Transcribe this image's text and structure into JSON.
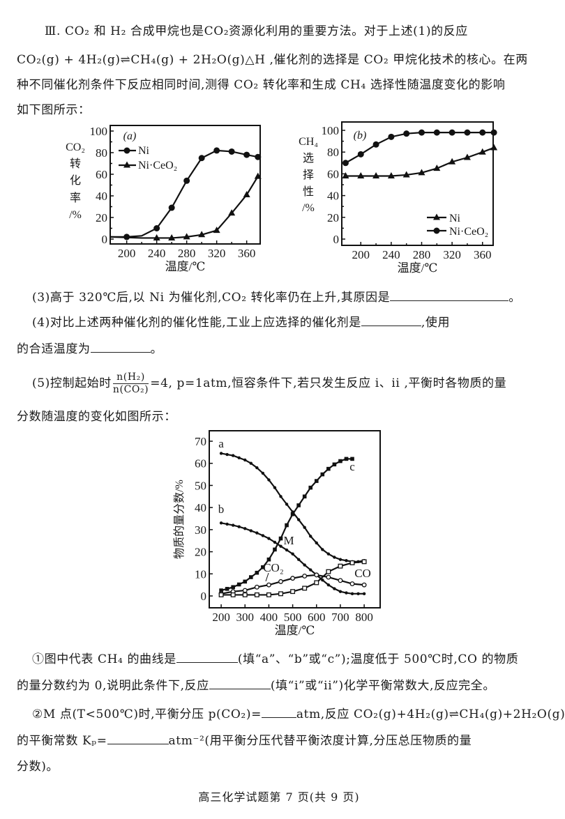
{
  "intro": {
    "line1": "Ⅲ. CO₂ 和 H₂ 合成甲烷也是CO₂资源化利用的重要方法。对于上述(1)的反应",
    "line2": "CO₂(g) + 4H₂(g)⇌CH₄(g) + 2H₂O(g)△H ,催化剂的选择是 CO₂ 甲烷化技术的核心。在两",
    "line3": "种不同催化剂条件下反应相同时间,测得 CO₂ 转化率和生成 CH₄ 选择性随温度变化的影响",
    "line4": "如下图所示："
  },
  "q3": {
    "text": "(3)高于 320℃后,以 Ni 为催化剂,CO₂ 转化率仍在上升,其原因是",
    "end": "。"
  },
  "q4": {
    "text": "(4)对比上述两种催化剂的催化性能,工业上应选择的催化剂是",
    "mid": ",使用",
    "line2": "的合适温度为",
    "end": "。"
  },
  "q5": {
    "pre": "(5)控制起始时",
    "num": "n(H₂)",
    "den": "n(CO₂)",
    "post": "=4, p=1atm,恒容条件下,若只发生反应 i、ii ,平衡时各物质的量",
    "line2": "分数随温度的变化如图所示："
  },
  "sub1": {
    "a": "①图中代表 CH₄ 的曲线是",
    "b": "(填“a”、“b”或“c”);温度低于 500℃时,CO 的物质",
    "c": "的量分数约为 0,说明此条件下,反应",
    "d": "(填“i”或“ii”)化学平衡常数大,反应完全。"
  },
  "sub2": {
    "a": "②M 点(T<500℃)时,平衡分压 p(CO₂)=",
    "b": "atm,反应 CO₂(g)+4H₂(g)⇌CH₄(g)+2H₂O(g)",
    "c": "的平衡常数 Kₚ=",
    "d": "atm⁻²(用平衡分压代替平衡浓度计算,分压总压物质的量",
    "e": "分数)。"
  },
  "footer": "高三化学试题第 7 页(共 9 页)",
  "chart_data": [
    {
      "type": "line",
      "panel_label": "(a)",
      "ylabel": [
        "CO₂",
        "转",
        "化",
        "率",
        "/%"
      ],
      "xlabel": "温度/℃",
      "xlim": [
        178,
        378
      ],
      "ylim": [
        0,
        100
      ],
      "xticks": [
        200,
        240,
        280,
        320,
        360
      ],
      "yticks": [
        0,
        20,
        40,
        60,
        80,
        100
      ],
      "legend": "top-left",
      "series": [
        {
          "name": "Ni",
          "marker": "circle",
          "x": [
            178,
            200,
            220,
            240,
            260,
            280,
            300,
            320,
            340,
            360,
            375
          ],
          "y": [
            2,
            2,
            3,
            10,
            29,
            54,
            75,
            82,
            81,
            78,
            76
          ],
          "marked": [
            false,
            true,
            false,
            true,
            true,
            true,
            true,
            true,
            true,
            true,
            true
          ]
        },
        {
          "name": "Ni·CeO₂",
          "marker": "triangle",
          "x": [
            178,
            220,
            240,
            260,
            280,
            300,
            320,
            340,
            360,
            375
          ],
          "y": [
            2,
            1,
            1,
            1,
            2,
            4,
            8,
            24,
            41,
            58
          ],
          "marked": [
            false,
            false,
            true,
            true,
            true,
            true,
            true,
            true,
            true,
            true
          ]
        }
      ]
    },
    {
      "type": "line",
      "panel_label": "(b)",
      "ylabel": [
        "CH₄",
        "选",
        "择",
        "性",
        "/%"
      ],
      "xlabel": "温度/℃",
      "xlim": [
        175,
        374
      ],
      "ylim": [
        0,
        100
      ],
      "xticks": [
        200,
        240,
        280,
        320,
        360
      ],
      "yticks": [
        0,
        20,
        40,
        60,
        80,
        100
      ],
      "legend": "bottom-right",
      "series": [
        {
          "name": "Ni",
          "marker": "triangle",
          "x": [
            180,
            200,
            220,
            240,
            260,
            280,
            300,
            320,
            340,
            360,
            375
          ],
          "y": [
            58,
            58,
            58,
            58,
            59,
            61,
            65,
            71,
            75,
            80,
            84
          ]
        },
        {
          "name": "Ni·CeO₂",
          "marker": "circle",
          "x": [
            180,
            200,
            220,
            240,
            260,
            280,
            300,
            320,
            340,
            360,
            375
          ],
          "y": [
            70,
            78,
            87,
            94,
            97,
            98,
            98,
            98,
            98,
            98,
            98
          ]
        }
      ]
    },
    {
      "type": "line",
      "ylabel": "物质的量分数/%",
      "xlabel": "温度/℃",
      "xlim": [
        150,
        867
      ],
      "ylim": [
        -3,
        74
      ],
      "xticks": [
        200,
        300,
        400,
        500,
        600,
        700,
        800
      ],
      "yticks": [
        0,
        10,
        20,
        30,
        40,
        50,
        60,
        70
      ],
      "annotations": [
        "a",
        "b",
        "c",
        "M",
        "CO₂",
        "CO"
      ],
      "series": [
        {
          "label": "a",
          "marker": "dot",
          "x": [
            200,
            225,
            250,
            275,
            300,
            325,
            350,
            375,
            400,
            425,
            450,
            475,
            500,
            525,
            550,
            575,
            600,
            625,
            650,
            675,
            700,
            725,
            750,
            775,
            800
          ],
          "y": [
            64.5,
            64,
            63.5,
            62.5,
            61.5,
            60,
            58,
            55.5,
            52.5,
            49,
            45,
            41.5,
            38,
            34.5,
            31,
            27,
            24,
            21,
            19,
            17.5,
            16.5,
            16,
            15.5,
            15.5,
            16
          ]
        },
        {
          "label": "b",
          "marker": "dot",
          "x": [
            200,
            225,
            250,
            275,
            300,
            325,
            350,
            375,
            400,
            425,
            450,
            475,
            500,
            525,
            550,
            575,
            600,
            625,
            650,
            675,
            700,
            725,
            750,
            775,
            800
          ],
          "y": [
            33,
            32.5,
            32,
            31.3,
            30.5,
            29.5,
            28.5,
            27.3,
            26,
            24.3,
            22.5,
            20.8,
            19,
            16.5,
            14,
            11.8,
            9.5,
            7.2,
            5,
            3.3,
            2,
            1.4,
            1,
            1,
            1
          ]
        },
        {
          "label": "c",
          "marker": "square",
          "x": [
            200,
            225,
            250,
            275,
            300,
            325,
            350,
            375,
            400,
            425,
            450,
            475,
            500,
            525,
            550,
            575,
            600,
            625,
            650,
            675,
            700,
            725,
            750
          ],
          "y": [
            2.5,
            3.2,
            4,
            5.2,
            6.5,
            8.5,
            10.5,
            13,
            16.5,
            21,
            26,
            32,
            37,
            41,
            45,
            49,
            52,
            55,
            57.5,
            59.5,
            61,
            62,
            62
          ]
        },
        {
          "label": "CO₂",
          "marker": "open-circle",
          "x": [
            200,
            250,
            300,
            350,
            400,
            450,
            500,
            550,
            600,
            650,
            700,
            750,
            800
          ],
          "y": [
            1,
            2,
            2.5,
            4,
            5,
            6.5,
            8,
            9,
            9.5,
            8.5,
            7,
            5.5,
            5
          ]
        },
        {
          "label": "CO",
          "marker": "open-square",
          "x": [
            200,
            250,
            300,
            350,
            400,
            450,
            500,
            550,
            600,
            650,
            700,
            750,
            800
          ],
          "y": [
            0.5,
            0.5,
            0.5,
            0.5,
            0.5,
            1,
            2,
            3.5,
            6,
            11,
            13.5,
            15,
            15.5
          ]
        }
      ]
    }
  ]
}
